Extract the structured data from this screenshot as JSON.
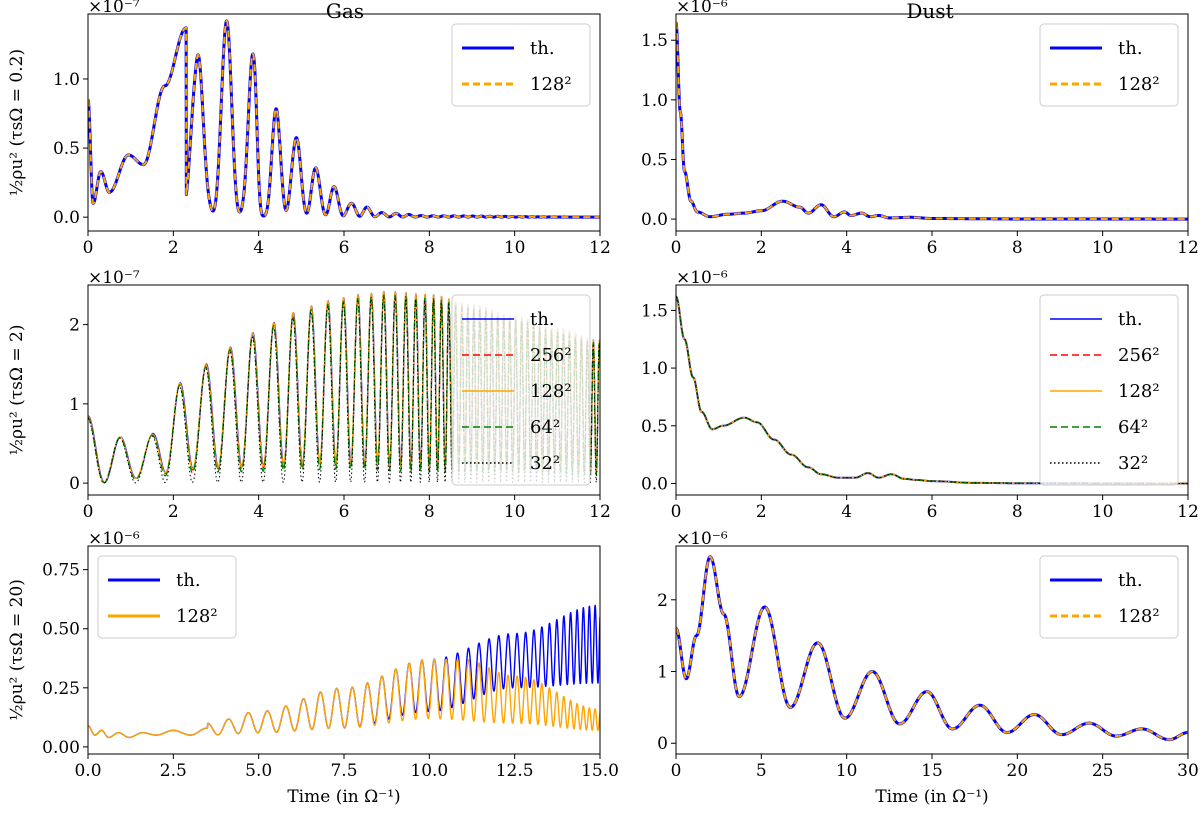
{
  "figure": {
    "column_titles": [
      "Gas",
      "Dust"
    ],
    "xlabel_bottom": "Time (in Ω⁻¹)"
  },
  "colors": {
    "th": "#0000ff",
    "r256": "#ff0000",
    "r128": "#ffa500",
    "r64": "#008000",
    "r32": "#000000"
  },
  "chart_data": [
    {
      "type": "line",
      "panel": "gas-row1",
      "title": "Gas",
      "ylabel": "½ρu² (τsΩ = 0.2)",
      "multiplier": "×10⁻⁷",
      "xlim": [
        0,
        12
      ],
      "ylim": [
        -0.1,
        1.47
      ],
      "xticks": [
        0,
        2,
        4,
        6,
        8,
        10,
        12
      ],
      "yticks": [
        0.0,
        0.5,
        1.0
      ],
      "ytick_labels": [
        "0.0",
        "0.5",
        "1.0"
      ],
      "legend": "top-right",
      "series": [
        {
          "name": "th.",
          "style": "solid",
          "color": "#0000ff"
        },
        {
          "name": "128²",
          "style": "dashed",
          "color": "#ffa500"
        }
      ],
      "envelope": [
        [
          0,
          0.85
        ],
        [
          0.12,
          0.1
        ],
        [
          0.3,
          0.33
        ],
        [
          0.5,
          0.18
        ],
        [
          0.95,
          0.45
        ],
        [
          1.3,
          0.38
        ],
        [
          1.8,
          0.95
        ],
        [
          2.3,
          1.37
        ],
        [
          2.55,
          1.2
        ],
        [
          2.85,
          0.55
        ],
        [
          3.25,
          1.42
        ],
        [
          3.6,
          0.5
        ],
        [
          3.9,
          1.22
        ],
        [
          4.1,
          0.12
        ],
        [
          4.45,
          0.82
        ],
        [
          4.85,
          0.58
        ],
        [
          5.2,
          0.4
        ],
        [
          5.6,
          0.25
        ],
        [
          6.2,
          0.1
        ],
        [
          7.0,
          0.03
        ],
        [
          8.0,
          0.01
        ],
        [
          12,
          0.0
        ]
      ],
      "oscillation": {
        "t0": 3.25,
        "period0": 0.62,
        "shrink": 0.045,
        "start": 2.3
      }
    },
    {
      "type": "line",
      "panel": "dust-row1",
      "title": "Dust",
      "ylabel": "",
      "multiplier": "×10⁻⁶",
      "xlim": [
        0,
        12
      ],
      "ylim": [
        -0.1,
        1.72
      ],
      "xticks": [
        0,
        2,
        4,
        6,
        8,
        10,
        12
      ],
      "yticks": [
        0.0,
        0.5,
        1.0,
        1.5
      ],
      "ytick_labels": [
        "0.0",
        "0.5",
        "1.0",
        "1.5"
      ],
      "legend": "top-right",
      "series": [
        {
          "name": "th.",
          "style": "solid",
          "color": "#0000ff"
        },
        {
          "name": "128²",
          "style": "dashed",
          "color": "#ffa500"
        }
      ],
      "points": [
        [
          0,
          1.65
        ],
        [
          0.1,
          0.9
        ],
        [
          0.2,
          0.4
        ],
        [
          0.35,
          0.15
        ],
        [
          0.5,
          0.06
        ],
        [
          0.8,
          0.02
        ],
        [
          1.2,
          0.04
        ],
        [
          1.6,
          0.05
        ],
        [
          2.0,
          0.07
        ],
        [
          2.5,
          0.15
        ],
        [
          2.9,
          0.1
        ],
        [
          3.1,
          0.05
        ],
        [
          3.4,
          0.12
        ],
        [
          3.7,
          0.02
        ],
        [
          3.95,
          0.06
        ],
        [
          4.1,
          0.03
        ],
        [
          4.35,
          0.05
        ],
        [
          4.55,
          0.02
        ],
        [
          4.75,
          0.03
        ],
        [
          5.0,
          0.01
        ],
        [
          5.5,
          0.015
        ],
        [
          6.0,
          0.005
        ],
        [
          7.0,
          0.003
        ],
        [
          8.0,
          0.001
        ],
        [
          12,
          0.0
        ]
      ]
    },
    {
      "type": "line",
      "panel": "gas-row2",
      "title": "",
      "ylabel": "½ρu² (τsΩ = 2)",
      "multiplier": "×10⁻⁷",
      "xlim": [
        0,
        12
      ],
      "ylim": [
        -0.15,
        2.5
      ],
      "xticks": [
        0,
        2,
        4,
        6,
        8,
        10,
        12
      ],
      "yticks": [
        0,
        1,
        2
      ],
      "ytick_labels": [
        "0",
        "1",
        "2"
      ],
      "legend": "top-right",
      "series": [
        {
          "name": "th.",
          "style": "solid",
          "color": "#0000ff"
        },
        {
          "name": "256²",
          "style": "dashed",
          "color": "#ff0000"
        },
        {
          "name": "128²",
          "style": "solid",
          "color": "#ffa500"
        },
        {
          "name": "64²",
          "style": "dashed",
          "color": "#008000"
        },
        {
          "name": "32²",
          "style": "dotted",
          "color": "#000000"
        }
      ],
      "peak_envelope": [
        [
          0,
          0.85
        ],
        [
          0.6,
          0.6
        ],
        [
          1.2,
          0.5
        ],
        [
          2.4,
          1.35
        ],
        [
          3.2,
          1.7
        ],
        [
          3.9,
          1.9
        ],
        [
          4.8,
          2.15
        ],
        [
          5.6,
          2.3
        ],
        [
          6.4,
          2.38
        ],
        [
          7.0,
          2.42
        ],
        [
          8.0,
          2.38
        ],
        [
          9.0,
          2.25
        ],
        [
          10.0,
          2.1
        ],
        [
          11.0,
          1.95
        ],
        [
          12.0,
          1.8
        ]
      ],
      "trough_envelope": [
        [
          0,
          0.0
        ],
        [
          3.0,
          0.2
        ],
        [
          6.0,
          0.25
        ],
        [
          8.0,
          0.2
        ],
        [
          10.0,
          0.2
        ],
        [
          12.0,
          0.15
        ]
      ]
    },
    {
      "type": "line",
      "panel": "dust-row2",
      "title": "",
      "ylabel": "",
      "multiplier": "×10⁻⁶",
      "xlim": [
        0,
        12
      ],
      "ylim": [
        -0.1,
        1.72
      ],
      "xticks": [
        0,
        2,
        4,
        6,
        8,
        10,
        12
      ],
      "yticks": [
        0.0,
        0.5,
        1.0,
        1.5
      ],
      "ytick_labels": [
        "0.0",
        "0.5",
        "1.0",
        "1.5"
      ],
      "legend": "top-right",
      "series": [
        {
          "name": "th.",
          "style": "solid",
          "color": "#0000ff"
        },
        {
          "name": "256²",
          "style": "dashed",
          "color": "#ff0000"
        },
        {
          "name": "128²",
          "style": "solid",
          "color": "#ffa500"
        },
        {
          "name": "64²",
          "style": "dashed",
          "color": "#008000"
        },
        {
          "name": "32²",
          "style": "dotted",
          "color": "#000000"
        }
      ],
      "points": [
        [
          0,
          1.62
        ],
        [
          0.2,
          1.25
        ],
        [
          0.4,
          0.92
        ],
        [
          0.6,
          0.62
        ],
        [
          0.85,
          0.47
        ],
        [
          1.1,
          0.5
        ],
        [
          1.6,
          0.57
        ],
        [
          1.9,
          0.53
        ],
        [
          2.3,
          0.38
        ],
        [
          2.7,
          0.25
        ],
        [
          3.1,
          0.14
        ],
        [
          3.4,
          0.08
        ],
        [
          3.8,
          0.05
        ],
        [
          4.2,
          0.05
        ],
        [
          4.5,
          0.09
        ],
        [
          4.75,
          0.05
        ],
        [
          5.05,
          0.08
        ],
        [
          5.35,
          0.04
        ],
        [
          5.65,
          0.03
        ],
        [
          6.0,
          0.02
        ],
        [
          7.0,
          0.005
        ],
        [
          8.0,
          0.002
        ],
        [
          12,
          0.0
        ]
      ]
    },
    {
      "type": "line",
      "panel": "gas-row3",
      "title": "",
      "ylabel": "½ρu² (τsΩ = 20)",
      "xlabel": "Time (in Ω⁻¹)",
      "multiplier": "×10⁻⁶",
      "xlim": [
        0,
        15
      ],
      "ylim": [
        -0.03,
        0.85
      ],
      "xticks": [
        0,
        2.5,
        5,
        7.5,
        10,
        12.5,
        15
      ],
      "xtick_labels": [
        "0.0",
        "2.5",
        "5.0",
        "7.5",
        "10.0",
        "12.5",
        "15.0"
      ],
      "yticks": [
        0.0,
        0.25,
        0.5,
        0.75
      ],
      "ytick_labels": [
        "0.00",
        "0.25",
        "0.50",
        "0.75"
      ],
      "legend": "top-left",
      "series": [
        {
          "name": "th.",
          "style": "solid",
          "color": "#0000ff"
        },
        {
          "name": "128²",
          "style": "solid",
          "color": "#ffa500"
        }
      ],
      "th_upper": [
        [
          3.5,
          0.1
        ],
        [
          5,
          0.15
        ],
        [
          7.5,
          0.25
        ],
        [
          10,
          0.37
        ],
        [
          12.5,
          0.48
        ],
        [
          15,
          0.6
        ]
      ],
      "th_lower": [
        [
          3.5,
          0.05
        ],
        [
          5,
          0.06
        ],
        [
          7.5,
          0.08
        ],
        [
          10,
          0.15
        ],
        [
          12.5,
          0.25
        ],
        [
          15,
          0.27
        ]
      ],
      "r128_upper": [
        [
          3.5,
          0.1
        ],
        [
          5,
          0.15
        ],
        [
          7.5,
          0.25
        ],
        [
          10,
          0.37
        ],
        [
          11,
          0.37
        ],
        [
          12.5,
          0.3
        ],
        [
          15,
          0.16
        ]
      ],
      "r128_lower": [
        [
          3.5,
          0.05
        ],
        [
          5,
          0.06
        ],
        [
          7.5,
          0.08
        ],
        [
          10,
          0.12
        ],
        [
          12.5,
          0.1
        ],
        [
          15,
          0.07
        ]
      ],
      "early_points": [
        [
          0,
          0.09
        ],
        [
          0.2,
          0.05
        ],
        [
          0.4,
          0.07
        ],
        [
          0.6,
          0.04
        ],
        [
          0.9,
          0.06
        ],
        [
          1.2,
          0.04
        ],
        [
          1.6,
          0.06
        ],
        [
          2.0,
          0.05
        ],
        [
          2.5,
          0.07
        ],
        [
          3.0,
          0.05
        ],
        [
          3.5,
          0.08
        ]
      ]
    },
    {
      "type": "line",
      "panel": "dust-row3",
      "title": "",
      "ylabel": "",
      "xlabel": "Time (in Ω⁻¹)",
      "multiplier": "×10⁻⁶",
      "xlim": [
        0,
        30
      ],
      "ylim": [
        -0.15,
        2.75
      ],
      "xticks": [
        0,
        5,
        10,
        15,
        20,
        25,
        30
      ],
      "yticks": [
        0,
        1,
        2
      ],
      "ytick_labels": [
        "0",
        "1",
        "2"
      ],
      "legend": "top-right",
      "series": [
        {
          "name": "th.",
          "style": "solid",
          "color": "#0000ff"
        },
        {
          "name": "128²",
          "style": "dashed",
          "color": "#ffa500"
        }
      ],
      "points": [
        [
          0,
          1.6
        ],
        [
          0.6,
          0.9
        ],
        [
          1.2,
          1.5
        ],
        [
          2.0,
          2.6
        ],
        [
          2.8,
          1.8
        ],
        [
          3.7,
          0.65
        ],
        [
          5.2,
          1.9
        ],
        [
          6.7,
          0.5
        ],
        [
          8.3,
          1.4
        ],
        [
          9.9,
          0.35
        ],
        [
          11.5,
          1.0
        ],
        [
          13.1,
          0.27
        ],
        [
          14.7,
          0.72
        ],
        [
          16.2,
          0.2
        ],
        [
          17.8,
          0.53
        ],
        [
          19.4,
          0.15
        ],
        [
          21.0,
          0.4
        ],
        [
          22.6,
          0.12
        ],
        [
          24.2,
          0.28
        ],
        [
          25.8,
          0.1
        ],
        [
          27.3,
          0.2
        ],
        [
          28.9,
          0.05
        ],
        [
          30,
          0.15
        ]
      ]
    }
  ]
}
